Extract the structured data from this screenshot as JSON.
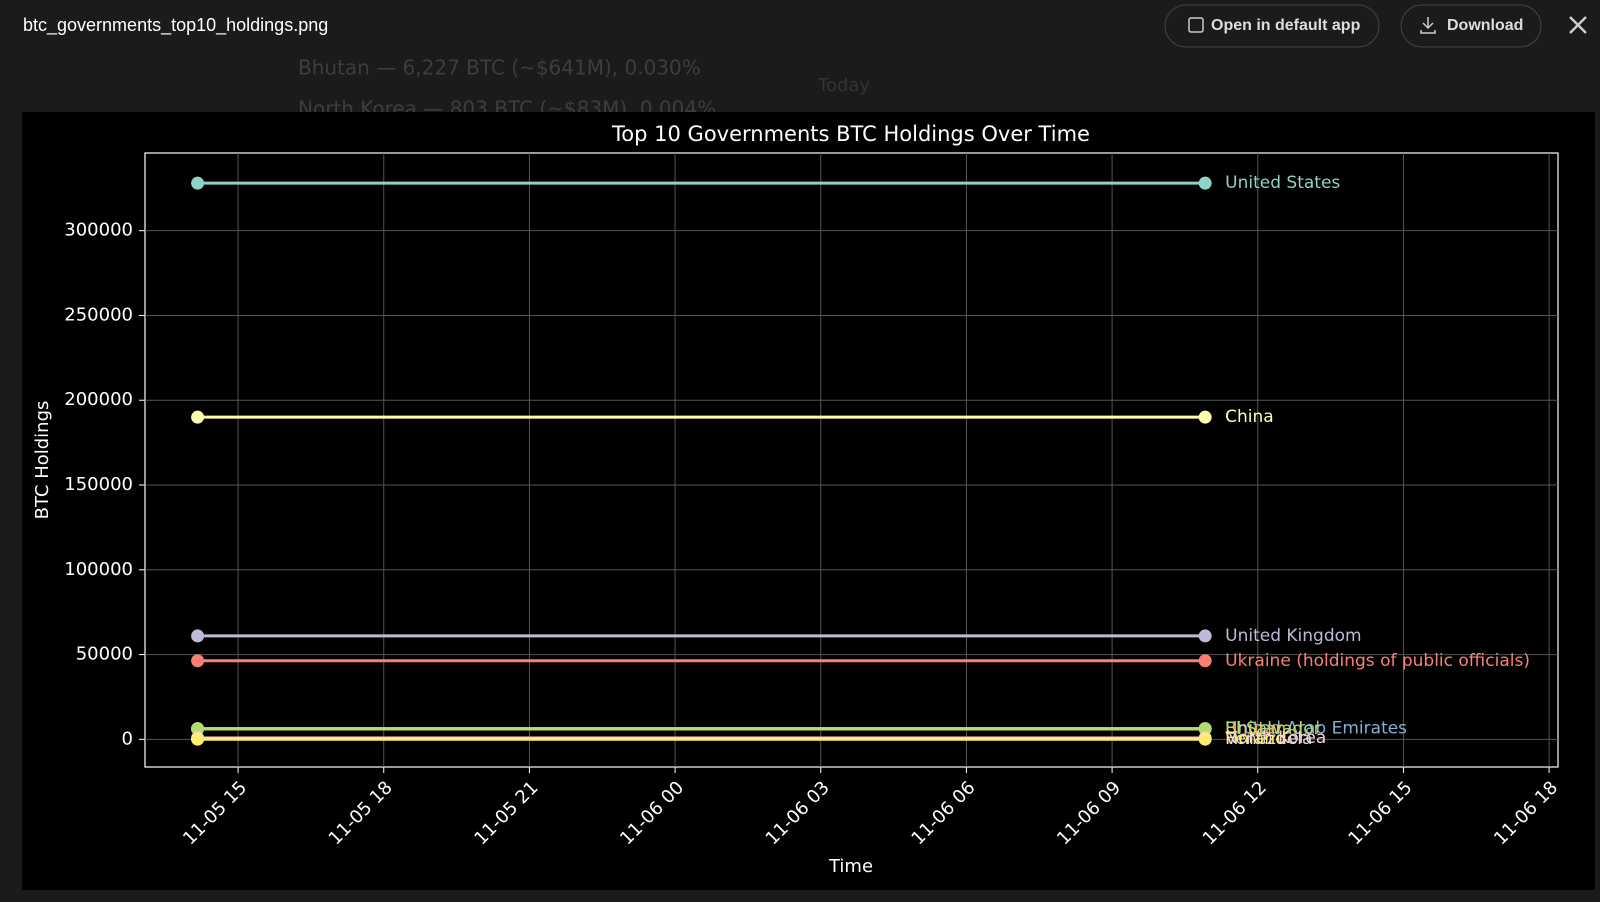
{
  "header": {
    "filename": "btc_governments_top10_holdings.png",
    "open_button": "Open in default app",
    "download_button": "Download"
  },
  "background_text": [
    "Bhutan — 6,227 BTC (~$641M), 0.030%",
    "North Korea — 803 BTC (~$83M), 0.004%",
    "Today"
  ],
  "chart_data": {
    "type": "line",
    "title": "Top 10 Governments BTC Holdings Over Time",
    "x_label": "Time",
    "y_label": "BTC Holdings",
    "x": [
      "11-05 14:10",
      "11-06 10:55"
    ],
    "xlim": [
      "11-05 13:05",
      "11-06 18:11"
    ],
    "xticks": [
      {
        "value": "11-05 15:00",
        "label": "11-05 15"
      },
      {
        "value": "11-05 18:00",
        "label": "11-05 18"
      },
      {
        "value": "11-05 21:00",
        "label": "11-05 21"
      },
      {
        "value": "11-06 00:00",
        "label": "11-06 00"
      },
      {
        "value": "11-06 03:00",
        "label": "11-06 03"
      },
      {
        "value": "11-06 06:00",
        "label": "11-06 06"
      },
      {
        "value": "11-06 09:00",
        "label": "11-06 09"
      },
      {
        "value": "11-06 12:00",
        "label": "11-06 12"
      },
      {
        "value": "11-06 15:00",
        "label": "11-06 15"
      },
      {
        "value": "11-06 18:00",
        "label": "11-06 18"
      }
    ],
    "ylim": [
      -16300,
      345800
    ],
    "yticks": [
      0,
      50000,
      100000,
      150000,
      200000,
      250000,
      300000
    ],
    "grid": true,
    "series": [
      {
        "name": "United States",
        "color": "#8dd3c7",
        "values": [
          328000,
          328000
        ]
      },
      {
        "name": "China",
        "color": "#ffffb3",
        "values": [
          190000,
          190000
        ]
      },
      {
        "name": "United Kingdom",
        "color": "#bebada",
        "values": [
          61000,
          61000
        ]
      },
      {
        "name": "Ukraine (holdings of public officials)",
        "color": "#fb8072",
        "values": [
          46351,
          46351
        ]
      },
      {
        "name": "United Arab Emirates",
        "color": "#80b1d3",
        "values": [
          6420,
          6420
        ]
      },
      {
        "name": "Bhutan",
        "color": "#fdb462",
        "values": [
          6227,
          6227
        ]
      },
      {
        "name": "El Salvador",
        "color": "#b3de69",
        "values": [
          6100,
          6100
        ]
      },
      {
        "name": "North Korea",
        "color": "#fccde5",
        "values": [
          803,
          803
        ]
      },
      {
        "name": "Venezuela",
        "color": "#d9d9d9",
        "values": [
          240,
          240
        ]
      },
      {
        "name": "Finland",
        "color": "#ffed6f",
        "values": [
          90,
          90
        ]
      }
    ]
  }
}
